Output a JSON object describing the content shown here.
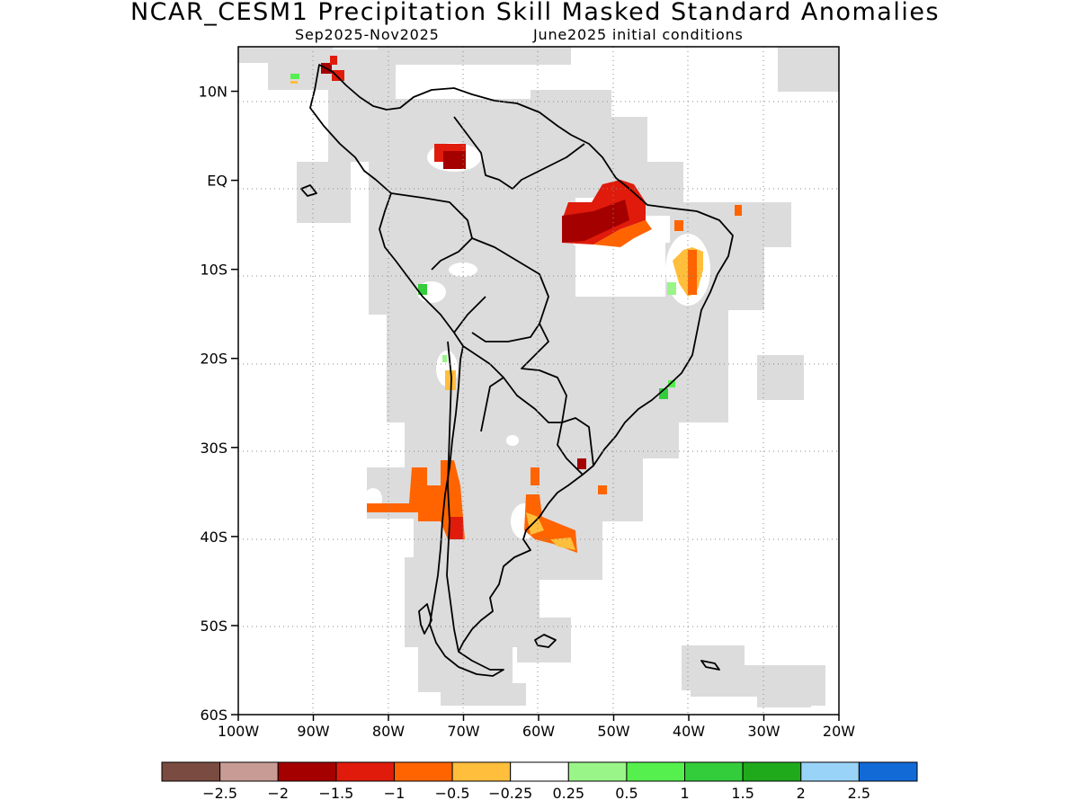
{
  "title": "NCAR_CESM1 Precipitation Skill Masked Standard Anomalies",
  "subtitle_left": "Sep2025-Nov2025",
  "subtitle_right": "June2025 initial conditions",
  "map": {
    "lon_range": [
      -100,
      -20
    ],
    "lat_range": [
      -60,
      15
    ],
    "x_ticks": [
      {
        "lon": -100,
        "label": "100W"
      },
      {
        "lon": -90,
        "label": "90W"
      },
      {
        "lon": -80,
        "label": "80W"
      },
      {
        "lon": -70,
        "label": "70W"
      },
      {
        "lon": -60,
        "label": "60W"
      },
      {
        "lon": -50,
        "label": "50W"
      },
      {
        "lon": -40,
        "label": "40W"
      },
      {
        "lon": -30,
        "label": "30W"
      },
      {
        "lon": -20,
        "label": "20W"
      }
    ],
    "y_ticks": [
      {
        "lat": 10,
        "label": "10N"
      },
      {
        "lat": 0,
        "label": "EQ"
      },
      {
        "lat": -10,
        "label": "10S"
      },
      {
        "lat": -20,
        "label": "20S"
      },
      {
        "lat": -30,
        "label": "30S"
      },
      {
        "lat": -40,
        "label": "40S"
      },
      {
        "lat": -50,
        "label": "50S"
      },
      {
        "lat": -60,
        "label": "60S"
      }
    ],
    "grid": "dotted",
    "mask_color": "#dcdcdc",
    "coastline_color": "#000000"
  },
  "colorbar": {
    "colors": [
      "#7a4b40",
      "#c89c94",
      "#a50000",
      "#e01b0b",
      "#ff6400",
      "#ffbe3c",
      "#ffffff",
      "#99f587",
      "#55f04e",
      "#33cc3a",
      "#1faa1c",
      "#99d3f8",
      "#126ad7"
    ],
    "labels": [
      "-2.5",
      "-2",
      "-1.5",
      "-1",
      "-0.5",
      "-0.25",
      "0.25",
      "0.5",
      "1",
      "1.5",
      "2",
      "2.5"
    ]
  },
  "anomaly_patches": [
    {
      "region": "amazon-delta",
      "color": "#a50000"
    },
    {
      "region": "amazon-delta",
      "color": "#e01b0b"
    },
    {
      "region": "amazon-delta",
      "color": "#ff6400"
    },
    {
      "region": "colombia",
      "color": "#a50000"
    },
    {
      "region": "central-america",
      "color": "#a50000"
    },
    {
      "region": "central-chile",
      "color": "#ff6400"
    },
    {
      "region": "rio-de-la-plata",
      "color": "#ff6400"
    },
    {
      "region": "eastern-brazil",
      "color": "#ffbe3c"
    },
    {
      "region": "southeast-brazil",
      "color": "#33cc3a"
    }
  ]
}
